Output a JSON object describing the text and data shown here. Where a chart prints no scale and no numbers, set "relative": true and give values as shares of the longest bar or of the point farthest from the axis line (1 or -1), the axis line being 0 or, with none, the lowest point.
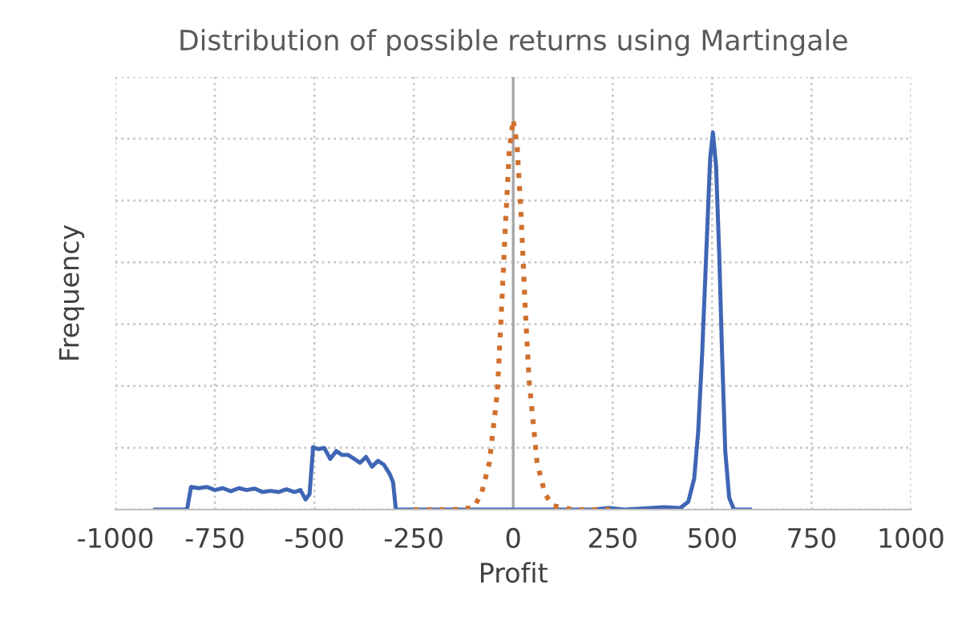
{
  "chart_data": {
    "type": "line",
    "title": "Distribution of possible returns using Martingale",
    "xlabel": "Profit",
    "ylabel": "Frequency",
    "relative": true,
    "xlim": [
      -1000,
      1000
    ],
    "xticks": [
      -1000,
      -750,
      -500,
      -250,
      0,
      250,
      500,
      750,
      1000
    ],
    "grid": true,
    "tick_labels": "x",
    "marker": "none",
    "legend": false,
    "ref_lines": [
      {
        "axis": "x",
        "value": 0,
        "color": "#a6a6a6",
        "line_style": "solid"
      }
    ],
    "series": [
      {
        "color": "#3f66b5",
        "line_style": "solid",
        "x": [
          -900,
          -820,
          -810,
          -790,
          -770,
          -750,
          -730,
          -710,
          -690,
          -670,
          -650,
          -630,
          -610,
          -590,
          -570,
          -550,
          -535,
          -522,
          -512,
          -503,
          -490,
          -475,
          -460,
          -445,
          -430,
          -415,
          -400,
          -385,
          -370,
          -355,
          -340,
          -325,
          -310,
          -302,
          -295,
          200,
          240,
          280,
          380,
          420,
          440,
          455,
          465,
          475,
          485,
          495,
          502,
          510,
          518,
          525,
          533,
          543,
          555,
          595
        ],
        "values": [
          0,
          0,
          0.058,
          0.055,
          0.058,
          0.05,
          0.055,
          0.047,
          0.055,
          0.05,
          0.054,
          0.045,
          0.048,
          0.045,
          0.052,
          0.045,
          0.05,
          0.026,
          0.04,
          0.16,
          0.155,
          0.158,
          0.13,
          0.15,
          0.14,
          0.14,
          0.13,
          0.12,
          0.135,
          0.11,
          0.125,
          0.115,
          0.09,
          0.07,
          0,
          0,
          0.004,
          0,
          0.006,
          0.004,
          0.02,
          0.08,
          0.2,
          0.4,
          0.65,
          0.9,
          0.967,
          0.88,
          0.65,
          0.4,
          0.15,
          0.03,
          0,
          0
        ]
      },
      {
        "color": "#d0702c",
        "line_style": "dotted",
        "x": [
          -250,
          -150,
          -100,
          -80,
          -60,
          -40,
          -30,
          -20,
          -10,
          0,
          10,
          20,
          30,
          40,
          60,
          80,
          100,
          150,
          250
        ],
        "values": [
          0,
          0,
          0.005,
          0.04,
          0.12,
          0.3,
          0.5,
          0.72,
          0.92,
          1,
          0.93,
          0.75,
          0.52,
          0.33,
          0.12,
          0.04,
          0.01,
          0,
          0
        ]
      }
    ]
  }
}
